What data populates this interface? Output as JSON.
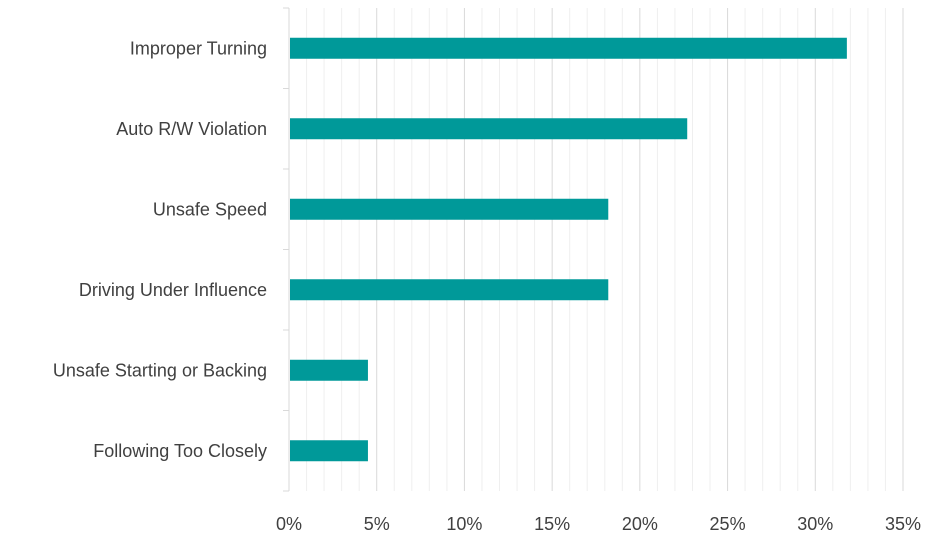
{
  "chart_data": {
    "type": "bar",
    "orientation": "horizontal",
    "title": "",
    "xlabel": "",
    "ylabel": "",
    "categories": [
      "Improper Turning",
      "Auto R/W Violation",
      "Unsafe Speed",
      "Driving Under Influence",
      "Unsafe Starting or Backing",
      "Following Too Closely"
    ],
    "values": [
      31.8,
      22.7,
      18.2,
      18.2,
      4.5,
      4.5
    ],
    "value_unit": "%",
    "xlim": [
      0,
      35
    ],
    "x_ticks": [
      "0%",
      "5%",
      "10%",
      "15%",
      "20%",
      "25%",
      "30%",
      "35%"
    ],
    "grid": true,
    "minor_grid_step": 1,
    "legend": "none",
    "bar_color": "#009999",
    "major_grid_color": "#d9d9d9",
    "minor_grid_color": "#efefef"
  }
}
